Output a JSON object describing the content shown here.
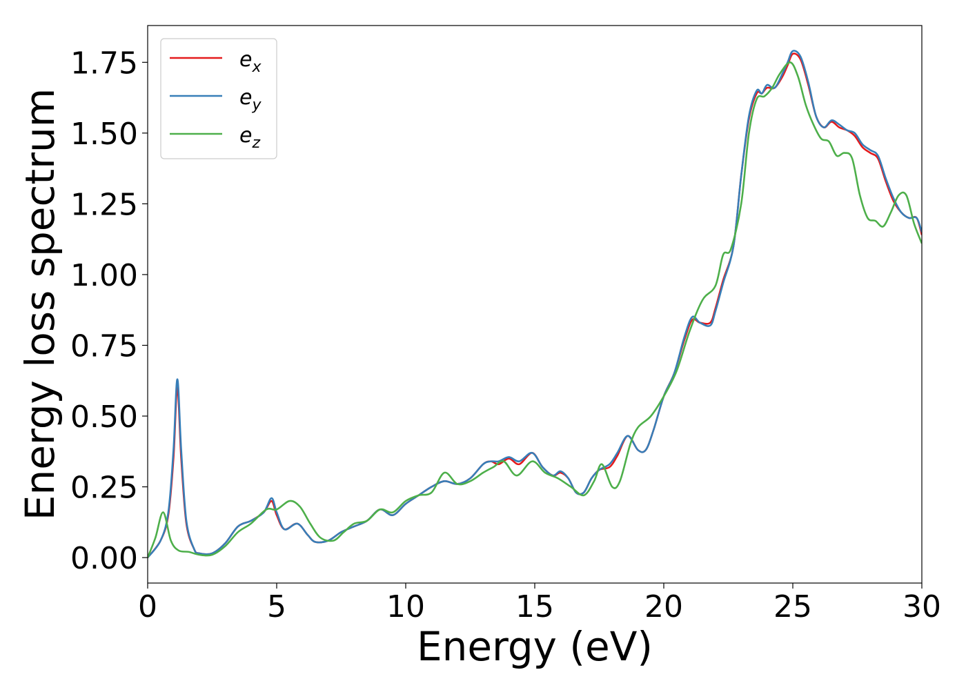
{
  "chart_data": {
    "type": "line",
    "xlabel": "Energy (eV)",
    "ylabel": "Energy loss spectrum",
    "xlim": [
      0,
      30
    ],
    "ylim": [
      -0.09,
      1.88
    ],
    "xticks": [
      0,
      5,
      10,
      15,
      20,
      25,
      30
    ],
    "xtick_labels": [
      "0",
      "5",
      "10",
      "15",
      "20",
      "25",
      "30"
    ],
    "yticks": [
      0.0,
      0.25,
      0.5,
      0.75,
      1.0,
      1.25,
      1.5,
      1.75
    ],
    "ytick_labels": [
      "0.00",
      "0.25",
      "0.50",
      "0.75",
      "1.00",
      "1.25",
      "1.50",
      "1.75"
    ],
    "grid": false,
    "legend_position": "top-left",
    "series": [
      {
        "name": "e",
        "subscript": "x",
        "color": "#e41a1c",
        "x": [
          0,
          0.5,
          0.8,
          1.0,
          1.15,
          1.3,
          1.5,
          1.8,
          2.0,
          2.5,
          3.0,
          3.5,
          4.0,
          4.5,
          4.8,
          5.0,
          5.3,
          5.8,
          6.2,
          6.5,
          7.0,
          7.5,
          8.0,
          8.5,
          9.0,
          9.5,
          10.0,
          10.5,
          11.0,
          11.5,
          12.0,
          12.5,
          13.0,
          13.3,
          13.6,
          14.0,
          14.4,
          14.9,
          15.3,
          15.7,
          16.0,
          16.3,
          16.6,
          16.9,
          17.2,
          17.5,
          17.9,
          18.2,
          18.6,
          19.0,
          19.3,
          19.6,
          20.0,
          20.4,
          20.8,
          21.1,
          21.4,
          21.8,
          22.0,
          22.3,
          22.7,
          23.0,
          23.3,
          23.6,
          23.8,
          24.0,
          24.3,
          24.6,
          24.8,
          25.0,
          25.3,
          25.6,
          25.9,
          26.2,
          26.5,
          26.8,
          27.1,
          27.4,
          27.7,
          28.0,
          28.3,
          28.6,
          28.9,
          29.2,
          29.5,
          29.8,
          30.0
        ],
        "y": [
          0.0,
          0.06,
          0.15,
          0.35,
          0.6,
          0.35,
          0.12,
          0.03,
          0.015,
          0.015,
          0.05,
          0.11,
          0.13,
          0.16,
          0.2,
          0.15,
          0.1,
          0.12,
          0.08,
          0.055,
          0.06,
          0.09,
          0.11,
          0.13,
          0.17,
          0.15,
          0.19,
          0.22,
          0.25,
          0.27,
          0.26,
          0.28,
          0.33,
          0.34,
          0.33,
          0.35,
          0.33,
          0.37,
          0.32,
          0.29,
          0.3,
          0.28,
          0.23,
          0.23,
          0.28,
          0.31,
          0.32,
          0.36,
          0.43,
          0.38,
          0.38,
          0.45,
          0.57,
          0.65,
          0.77,
          0.84,
          0.83,
          0.83,
          0.88,
          0.98,
          1.1,
          1.35,
          1.55,
          1.64,
          1.64,
          1.66,
          1.66,
          1.7,
          1.74,
          1.78,
          1.76,
          1.67,
          1.56,
          1.52,
          1.54,
          1.52,
          1.51,
          1.49,
          1.45,
          1.43,
          1.41,
          1.33,
          1.26,
          1.22,
          1.2,
          1.2,
          1.14
        ]
      },
      {
        "name": "e",
        "subscript": "y",
        "color": "#377eb8",
        "x": [
          0,
          0.5,
          0.8,
          1.0,
          1.15,
          1.3,
          1.5,
          1.8,
          2.0,
          2.5,
          3.0,
          3.5,
          4.0,
          4.5,
          4.8,
          5.0,
          5.3,
          5.8,
          6.2,
          6.5,
          7.0,
          7.5,
          8.0,
          8.5,
          9.0,
          9.5,
          10.0,
          10.5,
          11.0,
          11.5,
          12.0,
          12.5,
          13.0,
          13.3,
          13.6,
          14.0,
          14.4,
          14.9,
          15.3,
          15.7,
          16.0,
          16.3,
          16.6,
          16.9,
          17.2,
          17.5,
          17.9,
          18.2,
          18.6,
          19.0,
          19.3,
          19.6,
          20.0,
          20.4,
          20.8,
          21.1,
          21.4,
          21.8,
          22.0,
          22.3,
          22.7,
          23.0,
          23.3,
          23.6,
          23.8,
          24.0,
          24.3,
          24.6,
          24.8,
          25.0,
          25.3,
          25.6,
          25.9,
          26.2,
          26.5,
          26.8,
          27.1,
          27.4,
          27.7,
          28.0,
          28.3,
          28.6,
          28.9,
          29.2,
          29.5,
          29.8,
          30.0
        ],
        "y": [
          0.0,
          0.06,
          0.16,
          0.38,
          0.63,
          0.38,
          0.13,
          0.03,
          0.015,
          0.015,
          0.05,
          0.11,
          0.13,
          0.16,
          0.21,
          0.16,
          0.1,
          0.12,
          0.08,
          0.055,
          0.06,
          0.09,
          0.11,
          0.13,
          0.17,
          0.15,
          0.19,
          0.22,
          0.25,
          0.27,
          0.26,
          0.28,
          0.33,
          0.34,
          0.34,
          0.355,
          0.34,
          0.37,
          0.32,
          0.29,
          0.305,
          0.28,
          0.23,
          0.23,
          0.28,
          0.31,
          0.33,
          0.37,
          0.43,
          0.38,
          0.38,
          0.45,
          0.57,
          0.65,
          0.78,
          0.85,
          0.83,
          0.82,
          0.87,
          0.97,
          1.1,
          1.35,
          1.56,
          1.65,
          1.64,
          1.67,
          1.66,
          1.71,
          1.75,
          1.79,
          1.77,
          1.68,
          1.56,
          1.52,
          1.545,
          1.53,
          1.51,
          1.5,
          1.46,
          1.44,
          1.42,
          1.34,
          1.27,
          1.22,
          1.2,
          1.2,
          1.15
        ]
      },
      {
        "name": "e",
        "subscript": "z",
        "color": "#4daf4a",
        "x": [
          0,
          0.3,
          0.6,
          0.9,
          1.2,
          1.6,
          2.0,
          2.5,
          3.0,
          3.5,
          4.0,
          4.6,
          5.0,
          5.5,
          5.9,
          6.3,
          6.7,
          7.2,
          7.6,
          8.0,
          8.5,
          9.0,
          9.5,
          10.0,
          10.5,
          11.0,
          11.5,
          12.0,
          12.5,
          13.0,
          13.4,
          13.8,
          14.3,
          14.9,
          15.4,
          15.9,
          16.4,
          16.9,
          17.3,
          17.6,
          18.0,
          18.3,
          18.7,
          19.0,
          19.5,
          20.0,
          20.5,
          21.0,
          21.5,
          22.0,
          22.3,
          22.6,
          23.0,
          23.3,
          23.6,
          23.9,
          24.2,
          24.5,
          24.9,
          25.2,
          25.5,
          25.8,
          26.1,
          26.4,
          26.7,
          27.0,
          27.3,
          27.6,
          27.9,
          28.2,
          28.5,
          28.8,
          29.1,
          29.4,
          29.7,
          30.0
        ],
        "y": [
          0.0,
          0.07,
          0.16,
          0.06,
          0.025,
          0.02,
          0.01,
          0.01,
          0.04,
          0.09,
          0.12,
          0.17,
          0.17,
          0.2,
          0.18,
          0.12,
          0.07,
          0.06,
          0.09,
          0.12,
          0.13,
          0.17,
          0.16,
          0.2,
          0.22,
          0.23,
          0.3,
          0.26,
          0.27,
          0.3,
          0.32,
          0.34,
          0.29,
          0.34,
          0.3,
          0.28,
          0.25,
          0.22,
          0.27,
          0.33,
          0.25,
          0.27,
          0.4,
          0.46,
          0.5,
          0.57,
          0.66,
          0.8,
          0.91,
          0.96,
          1.07,
          1.09,
          1.25,
          1.5,
          1.62,
          1.63,
          1.66,
          1.71,
          1.75,
          1.7,
          1.6,
          1.53,
          1.48,
          1.47,
          1.42,
          1.43,
          1.41,
          1.28,
          1.2,
          1.19,
          1.17,
          1.22,
          1.28,
          1.28,
          1.18,
          1.11
        ]
      }
    ]
  }
}
